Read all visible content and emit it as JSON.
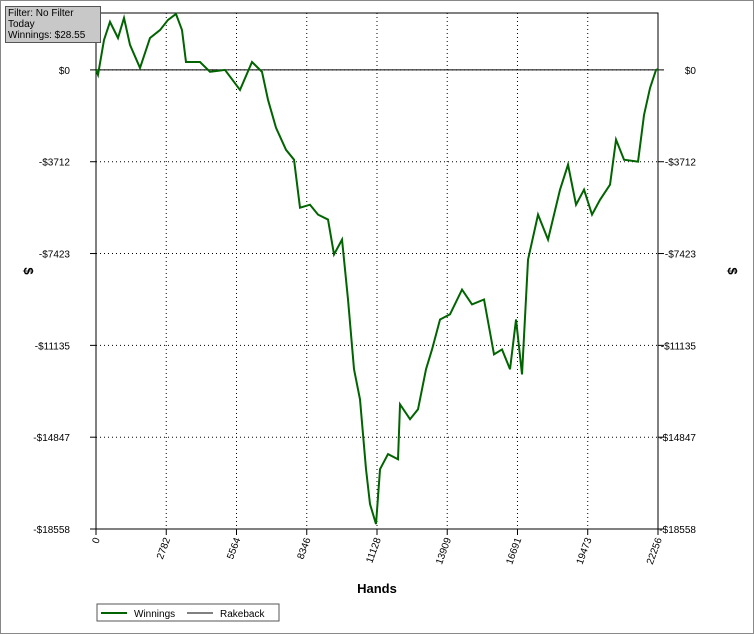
{
  "info": {
    "filter": "Filter: No Filter",
    "period": "Today",
    "winnings": "Winnings: $28.55"
  },
  "chart_data": {
    "type": "line",
    "xlabel": "Hands",
    "ylabel": "$",
    "xlim": [
      0,
      22256
    ],
    "ylim": [
      -18558,
      2300
    ],
    "xticks": [
      0,
      2782,
      5564,
      8346,
      11128,
      13909,
      16691,
      19473,
      22256
    ],
    "yticks": [
      {
        "value": 0,
        "label": "$0"
      },
      {
        "value": -3712,
        "label": "-$3712"
      },
      {
        "value": -7423,
        "label": "-$7423"
      },
      {
        "value": -11135,
        "label": "-$11135"
      },
      {
        "value": -14847,
        "label": "-$14847"
      },
      {
        "value": -18558,
        "label": "-$18558"
      }
    ],
    "grid": true,
    "legend": "bottom-left",
    "series": [
      {
        "name": "Winnings",
        "color": "#006400",
        "x": [
          0,
          79,
          317,
          554,
          871,
          1109,
          1347,
          1743,
          2139,
          2535,
          2851,
          3168,
          3406,
          3564,
          4119,
          4515,
          5109,
          5703,
          6178,
          6574,
          6812,
          7129,
          7525,
          7842,
          8079,
          8475,
          8792,
          9188,
          9426,
          9743,
          9980,
          10218,
          10455,
          10693,
          10851,
          11089,
          11248,
          11564,
          11960,
          12040,
          12436,
          12752,
          13069,
          13307,
          13624,
          14020,
          14495,
          14891,
          15366,
          15762,
          16079,
          16396,
          16634,
          16871,
          17109,
          17505,
          17901,
          18376,
          18693,
          19010,
          19327,
          19644,
          19960,
          20356,
          20594,
          20911,
          21465,
          21703,
          21941,
          22178,
          22256
        ],
        "values": [
          0,
          -200,
          1210,
          1940,
          1290,
          2100,
          1010,
          80,
          1290,
          1610,
          2020,
          2260,
          1610,
          320,
          320,
          -80,
          0,
          -810,
          320,
          -80,
          -1210,
          -2340,
          -3230,
          -3630,
          -5570,
          -5450,
          -5850,
          -6050,
          -7460,
          -6860,
          -9280,
          -12100,
          -13320,
          -16140,
          -17550,
          -18360,
          -16140,
          -15530,
          -15740,
          -13520,
          -14120,
          -13720,
          -12100,
          -11300,
          -10090,
          -9880,
          -8880,
          -9480,
          -9280,
          -11500,
          -11300,
          -12100,
          -10090,
          -12310,
          -7670,
          -5850,
          -6860,
          -4840,
          -3830,
          -5450,
          -4840,
          -5850,
          -5250,
          -4640,
          -2820,
          -3630,
          -3710,
          -1820,
          -730,
          0,
          29
        ]
      },
      {
        "name": "Rakeback",
        "color": "#000000",
        "x": [
          0,
          22256
        ],
        "values": [
          0,
          0
        ]
      }
    ]
  }
}
